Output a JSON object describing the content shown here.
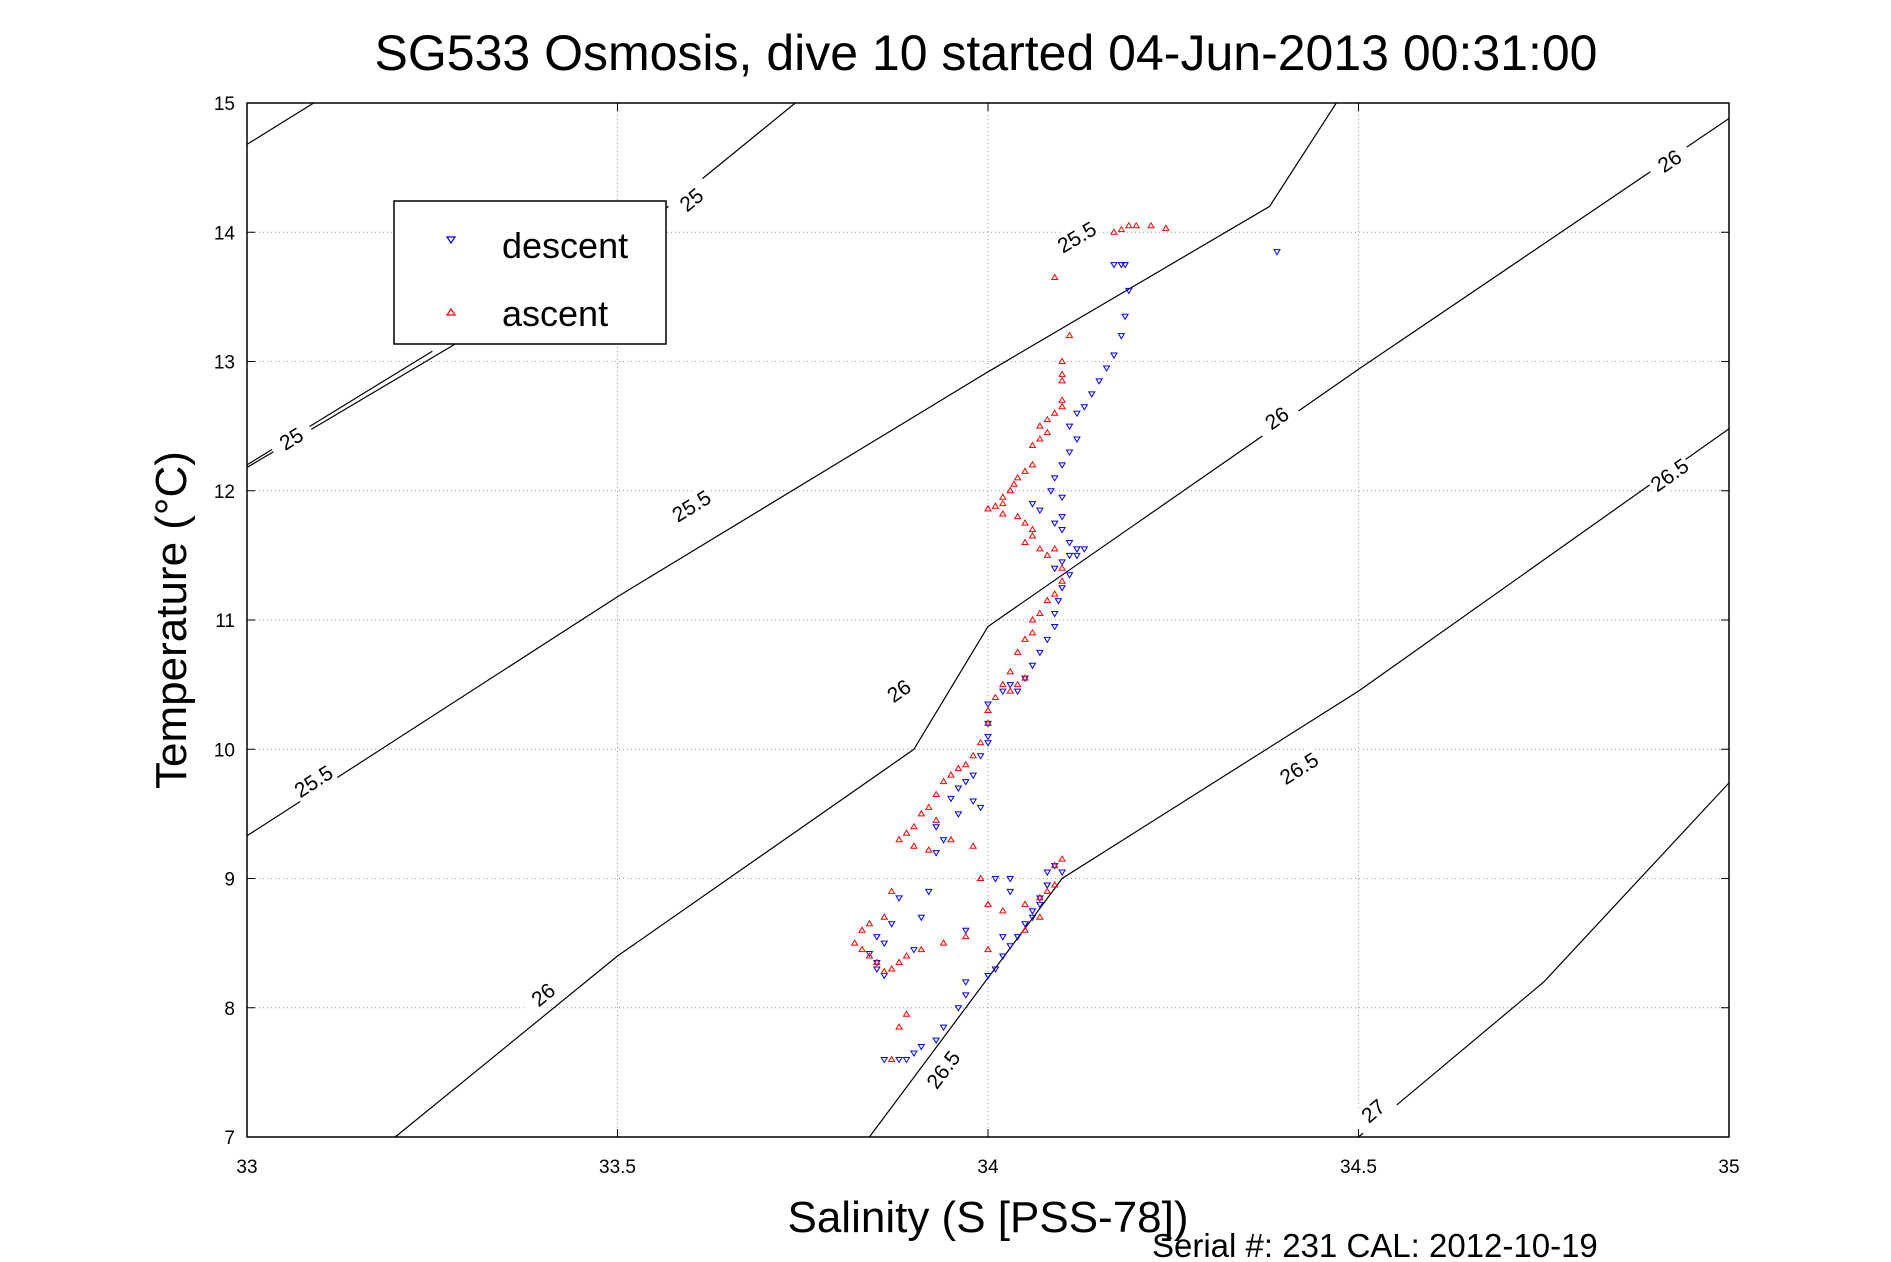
{
  "chart_data": {
    "type": "scatter",
    "title": "SG533 Osmosis, dive 10 started 04-Jun-2013 00:31:00",
    "xlabel": "Salinity (S [PSS-78])",
    "ylabel": "Temperature (°C)",
    "footer": "Serial #: 231  CAL: 2012-10-19",
    "xlim": [
      33,
      35
    ],
    "ylim": [
      7,
      15
    ],
    "xticks": [
      "33",
      "33.5",
      "34",
      "34.5",
      "35"
    ],
    "yticks": [
      "7",
      "8",
      "9",
      "10",
      "11",
      "12",
      "13",
      "14",
      "15"
    ],
    "grid": true,
    "legend_position": "top-left",
    "contours": [
      {
        "level": "25",
        "points": [
          [
            33.0,
            14.68
          ],
          [
            33.09,
            15.0
          ]
        ],
        "labels": []
      },
      {
        "level": "25",
        "points": [
          [
            33.0,
            12.18
          ],
          [
            33.5,
            13.88
          ],
          [
            33.74,
            15.0
          ]
        ],
        "labels": [
          {
            "x": 33.6,
            "y": 14.25,
            "text": "25"
          }
        ]
      },
      {
        "level": "25",
        "points": [
          [
            33.0,
            12.2
          ],
          [
            33.25,
            13.08
          ]
        ],
        "labels": [
          {
            "x": 33.06,
            "y": 12.4,
            "text": "25"
          }
        ]
      },
      {
        "level": "25.5",
        "points": [
          [
            33.0,
            9.33
          ],
          [
            33.5,
            11.18
          ],
          [
            34.0,
            12.92
          ],
          [
            34.38,
            14.2
          ],
          [
            34.47,
            15.0
          ]
        ],
        "labels": [
          {
            "x": 33.6,
            "y": 11.88,
            "text": "25.5"
          },
          {
            "x": 34.12,
            "y": 13.96,
            "text": "25.5"
          },
          {
            "x": 33.09,
            "y": 9.75,
            "text": "25.5"
          }
        ]
      },
      {
        "level": "26",
        "points": [
          [
            33.2,
            7.0
          ],
          [
            33.5,
            8.4
          ],
          [
            33.9,
            10.0
          ],
          [
            34.0,
            10.95
          ],
          [
            34.5,
            12.94
          ],
          [
            35.0,
            14.88
          ]
        ],
        "labels": [
          {
            "x": 33.4,
            "y": 8.1,
            "text": "26"
          },
          {
            "x": 33.88,
            "y": 10.45,
            "text": "26"
          },
          {
            "x": 34.39,
            "y": 12.56,
            "text": "26"
          },
          {
            "x": 34.92,
            "y": 14.55,
            "text": "26"
          }
        ]
      },
      {
        "level": "26.5",
        "points": [
          [
            33.84,
            7.0
          ],
          [
            34.1,
            9.0
          ],
          [
            34.5,
            10.45
          ],
          [
            35.0,
            12.48
          ]
        ],
        "labels": [
          {
            "x": 33.94,
            "y": 7.52,
            "text": "26.5"
          },
          {
            "x": 34.42,
            "y": 9.85,
            "text": "26.5"
          },
          {
            "x": 34.92,
            "y": 12.12,
            "text": "26.5"
          }
        ]
      },
      {
        "level": "27",
        "points": [
          [
            34.5,
            7.0
          ],
          [
            34.75,
            8.2
          ],
          [
            35.0,
            9.74
          ]
        ],
        "labels": [
          {
            "x": 34.52,
            "y": 7.2,
            "text": "27"
          }
        ]
      }
    ],
    "series": [
      {
        "name": "descent",
        "color": "#0000ff",
        "marker": "triangle-down",
        "points": [
          [
            34.39,
            13.85
          ],
          [
            34.17,
            13.75
          ],
          [
            34.18,
            13.75
          ],
          [
            34.185,
            13.75
          ],
          [
            34.19,
            13.55
          ],
          [
            34.185,
            13.35
          ],
          [
            34.18,
            13.2
          ],
          [
            34.17,
            13.05
          ],
          [
            34.16,
            12.95
          ],
          [
            34.15,
            12.85
          ],
          [
            34.14,
            12.75
          ],
          [
            34.13,
            12.65
          ],
          [
            34.12,
            12.6
          ],
          [
            34.11,
            12.5
          ],
          [
            34.12,
            12.4
          ],
          [
            34.11,
            12.3
          ],
          [
            34.1,
            12.2
          ],
          [
            34.09,
            12.1
          ],
          [
            34.085,
            12.0
          ],
          [
            34.1,
            11.95
          ],
          [
            34.06,
            11.9
          ],
          [
            34.07,
            11.85
          ],
          [
            34.1,
            11.8
          ],
          [
            34.09,
            11.75
          ],
          [
            34.1,
            11.7
          ],
          [
            34.11,
            11.6
          ],
          [
            34.12,
            11.55
          ],
          [
            34.11,
            11.5
          ],
          [
            34.1,
            11.45
          ],
          [
            34.09,
            11.4
          ],
          [
            34.11,
            11.35
          ],
          [
            34.12,
            11.5
          ],
          [
            34.13,
            11.55
          ],
          [
            34.1,
            11.25
          ],
          [
            34.095,
            11.15
          ],
          [
            34.09,
            11.05
          ],
          [
            34.09,
            10.95
          ],
          [
            34.08,
            10.85
          ],
          [
            34.07,
            10.75
          ],
          [
            34.06,
            10.65
          ],
          [
            34.05,
            10.55
          ],
          [
            34.04,
            10.45
          ],
          [
            34.03,
            10.5
          ],
          [
            34.02,
            10.45
          ],
          [
            34.0,
            10.35
          ],
          [
            34.0,
            10.2
          ],
          [
            34.0,
            10.1
          ],
          [
            34.0,
            10.05
          ],
          [
            33.99,
            9.95
          ],
          [
            33.98,
            9.8
          ],
          [
            33.97,
            9.75
          ],
          [
            33.96,
            9.7
          ],
          [
            33.98,
            9.6
          ],
          [
            33.99,
            9.55
          ],
          [
            33.95,
            9.62
          ],
          [
            33.96,
            9.5
          ],
          [
            33.93,
            9.4
          ],
          [
            33.94,
            9.3
          ],
          [
            33.93,
            9.2
          ],
          [
            34.01,
            9.0
          ],
          [
            34.03,
            9.0
          ],
          [
            34.08,
            9.05
          ],
          [
            34.09,
            9.1
          ],
          [
            34.08,
            8.95
          ],
          [
            34.07,
            8.85
          ],
          [
            34.06,
            8.75
          ],
          [
            34.05,
            8.65
          ],
          [
            34.04,
            8.55
          ],
          [
            34.03,
            8.48
          ],
          [
            34.02,
            8.4
          ],
          [
            34.01,
            8.3
          ],
          [
            34.0,
            8.25
          ],
          [
            33.97,
            8.2
          ],
          [
            33.97,
            8.1
          ],
          [
            33.96,
            8.0
          ],
          [
            33.94,
            7.85
          ],
          [
            33.93,
            7.75
          ],
          [
            33.91,
            7.7
          ],
          [
            33.9,
            7.65
          ],
          [
            33.89,
            7.6
          ],
          [
            33.88,
            7.6
          ],
          [
            33.86,
            7.6
          ],
          [
            33.85,
            8.3
          ],
          [
            33.86,
            8.25
          ],
          [
            33.85,
            8.35
          ],
          [
            33.84,
            8.42
          ],
          [
            33.86,
            8.5
          ],
          [
            33.85,
            8.55
          ],
          [
            33.87,
            8.65
          ],
          [
            33.88,
            8.85
          ],
          [
            33.9,
            8.45
          ],
          [
            33.91,
            8.7
          ],
          [
            33.92,
            8.9
          ],
          [
            33.97,
            8.6
          ],
          [
            34.02,
            8.55
          ],
          [
            34.06,
            8.7
          ],
          [
            34.03,
            8.9
          ],
          [
            34.07,
            8.8
          ],
          [
            34.08,
            8.95
          ],
          [
            34.1,
            9.05
          ]
        ]
      },
      {
        "name": "ascent",
        "color": "#ff0000",
        "marker": "triangle-up",
        "points": [
          [
            34.24,
            14.03
          ],
          [
            34.22,
            14.05
          ],
          [
            34.2,
            14.05
          ],
          [
            34.19,
            14.05
          ],
          [
            34.18,
            14.02
          ],
          [
            34.17,
            14.0
          ],
          [
            34.09,
            13.65
          ],
          [
            34.11,
            13.2
          ],
          [
            34.1,
            13.0
          ],
          [
            34.1,
            12.9
          ],
          [
            34.1,
            12.85
          ],
          [
            34.1,
            12.7
          ],
          [
            34.1,
            12.65
          ],
          [
            34.09,
            12.6
          ],
          [
            34.08,
            12.55
          ],
          [
            34.08,
            12.45
          ],
          [
            34.07,
            12.4
          ],
          [
            34.06,
            12.35
          ],
          [
            34.07,
            12.5
          ],
          [
            34.06,
            12.2
          ],
          [
            34.05,
            12.15
          ],
          [
            34.04,
            12.1
          ],
          [
            34.035,
            12.05
          ],
          [
            34.03,
            12.0
          ],
          [
            34.02,
            11.95
          ],
          [
            34.02,
            11.9
          ],
          [
            34.01,
            11.88
          ],
          [
            34.0,
            11.86
          ],
          [
            34.02,
            11.82
          ],
          [
            34.04,
            11.8
          ],
          [
            34.05,
            11.75
          ],
          [
            34.06,
            11.7
          ],
          [
            34.06,
            11.65
          ],
          [
            34.05,
            11.6
          ],
          [
            34.07,
            11.55
          ],
          [
            34.08,
            11.5
          ],
          [
            34.09,
            11.55
          ],
          [
            34.1,
            11.4
          ],
          [
            34.1,
            11.3
          ],
          [
            34.09,
            11.2
          ],
          [
            34.08,
            11.15
          ],
          [
            34.07,
            11.05
          ],
          [
            34.06,
            11.0
          ],
          [
            34.06,
            10.9
          ],
          [
            34.05,
            10.85
          ],
          [
            34.04,
            10.75
          ],
          [
            34.03,
            10.6
          ],
          [
            34.05,
            10.55
          ],
          [
            34.04,
            10.5
          ],
          [
            34.03,
            10.45
          ],
          [
            34.02,
            10.5
          ],
          [
            34.01,
            10.4
          ],
          [
            34.0,
            10.3
          ],
          [
            34.0,
            10.2
          ],
          [
            33.99,
            10.05
          ],
          [
            33.98,
            9.95
          ],
          [
            33.97,
            9.88
          ],
          [
            33.96,
            9.85
          ],
          [
            33.95,
            9.8
          ],
          [
            33.94,
            9.75
          ],
          [
            33.93,
            9.65
          ],
          [
            33.92,
            9.55
          ],
          [
            33.91,
            9.5
          ],
          [
            33.9,
            9.4
          ],
          [
            33.89,
            9.35
          ],
          [
            33.88,
            9.3
          ],
          [
            33.9,
            9.25
          ],
          [
            33.92,
            9.22
          ],
          [
            33.93,
            9.45
          ],
          [
            33.95,
            9.3
          ],
          [
            33.98,
            9.25
          ],
          [
            33.99,
            9.0
          ],
          [
            34.0,
            8.8
          ],
          [
            34.02,
            8.75
          ],
          [
            34.05,
            8.8
          ],
          [
            34.07,
            8.85
          ],
          [
            34.08,
            8.9
          ],
          [
            34.09,
            9.1
          ],
          [
            34.1,
            9.15
          ],
          [
            34.09,
            8.95
          ],
          [
            34.07,
            8.7
          ],
          [
            34.05,
            8.6
          ],
          [
            34.0,
            8.45
          ],
          [
            33.97,
            8.55
          ],
          [
            33.94,
            8.5
          ],
          [
            33.91,
            8.45
          ],
          [
            33.89,
            8.4
          ],
          [
            33.88,
            8.35
          ],
          [
            33.87,
            8.3
          ],
          [
            33.86,
            8.28
          ],
          [
            33.85,
            8.35
          ],
          [
            33.84,
            8.4
          ],
          [
            33.83,
            8.45
          ],
          [
            33.82,
            8.5
          ],
          [
            33.83,
            8.6
          ],
          [
            33.84,
            8.65
          ],
          [
            33.86,
            8.7
          ],
          [
            33.87,
            8.9
          ],
          [
            33.87,
            7.6
          ],
          [
            33.88,
            7.85
          ],
          [
            33.89,
            7.95
          ]
        ]
      }
    ]
  }
}
